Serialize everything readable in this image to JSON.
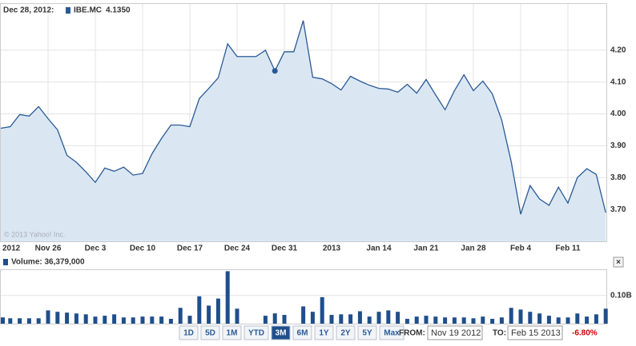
{
  "chart_data": [
    {
      "type": "area",
      "header_date": "Dec 28, 2012:",
      "highlight": {
        "value": 4.135,
        "label": "4.1350"
      },
      "watermark": "© 2013 Yahoo! Inc.",
      "categories": [
        "2012",
        null,
        null,
        null,
        null,
        "Nov 26",
        null,
        null,
        null,
        null,
        "Dec 3",
        null,
        null,
        null,
        null,
        "Dec 10",
        null,
        null,
        null,
        null,
        "Dec 17",
        null,
        null,
        null,
        null,
        "Dec 24",
        null,
        null,
        null,
        null,
        "Dec 31",
        null,
        null,
        null,
        null,
        "2013",
        null,
        null,
        null,
        null,
        "Jan 14",
        null,
        null,
        null,
        null,
        "Jan 21",
        null,
        null,
        null,
        null,
        "Jan 28",
        null,
        null,
        null,
        null,
        "Feb 4",
        null,
        null,
        null,
        null,
        "Feb 11",
        null,
        null,
        null,
        null
      ],
      "series": [
        {
          "name": "IBE.MC",
          "color": "#2a5a96",
          "values": [
            3.955,
            3.96,
            3.998,
            3.993,
            4.023,
            3.985,
            3.95,
            3.87,
            3.848,
            3.818,
            3.785,
            3.83,
            3.82,
            3.833,
            3.808,
            3.813,
            3.875,
            3.923,
            3.965,
            3.965,
            3.96,
            4.048,
            4.08,
            4.113,
            4.22,
            4.18,
            4.18,
            4.18,
            4.2,
            4.135,
            4.195,
            4.195,
            4.293,
            4.115,
            4.11,
            4.095,
            4.075,
            4.118,
            4.103,
            4.09,
            4.08,
            4.078,
            4.068,
            4.093,
            4.065,
            4.108,
            4.06,
            4.013,
            4.073,
            4.123,
            4.073,
            4.103,
            4.063,
            3.98,
            3.85,
            3.685,
            3.775,
            3.733,
            3.713,
            3.77,
            3.72,
            3.8,
            3.828,
            3.81,
            3.69
          ]
        }
      ],
      "ylim": [
        3.6,
        4.345
      ],
      "yticks": [
        {
          "value": 3.7,
          "label": "3.70"
        },
        {
          "value": 3.8,
          "label": "3.80"
        },
        {
          "value": 3.9,
          "label": "3.90"
        },
        {
          "value": 4.0,
          "label": "4.00"
        },
        {
          "value": 4.1,
          "label": "4.10"
        },
        {
          "value": 4.2,
          "label": "4.20"
        }
      ],
      "grid": true
    },
    {
      "type": "bar",
      "title": "Volume: 36,379,000",
      "color": "#1f4e8c",
      "values": [
        22000000,
        19000000,
        19000000,
        19000000,
        19000000,
        47000000,
        42000000,
        39000000,
        36000000,
        33000000,
        25000000,
        28000000,
        33000000,
        22000000,
        22000000,
        25000000,
        25000000,
        25000000,
        17000000,
        56000000,
        28000000,
        97000000,
        64000000,
        89000000,
        186000000,
        53000000,
        null,
        null,
        28000000,
        36379000,
        31000000,
        null,
        61000000,
        42000000,
        94000000,
        31000000,
        33000000,
        33000000,
        44000000,
        25000000,
        42000000,
        47000000,
        42000000,
        17000000,
        25000000,
        28000000,
        25000000,
        22000000,
        22000000,
        22000000,
        19000000,
        25000000,
        17000000,
        22000000,
        56000000,
        50000000,
        42000000,
        36000000,
        28000000,
        22000000,
        22000000,
        36000000,
        25000000,
        33000000,
        53000000
      ],
      "ylim": [
        0,
        190000000
      ],
      "yticks": [
        {
          "value": 100000000,
          "label": "0.10B"
        }
      ],
      "grid": true
    }
  ],
  "controls": {
    "ranges": [
      "1D",
      "5D",
      "1M",
      "YTD",
      "3M",
      "6M",
      "1Y",
      "2Y",
      "5Y",
      "Max"
    ],
    "active": "3M",
    "from_label": "FROM:",
    "from": "Nov 19 2012",
    "to_label": "TO:",
    "to": "Feb 15 2013",
    "change": "-6.80%",
    "close": "×"
  }
}
